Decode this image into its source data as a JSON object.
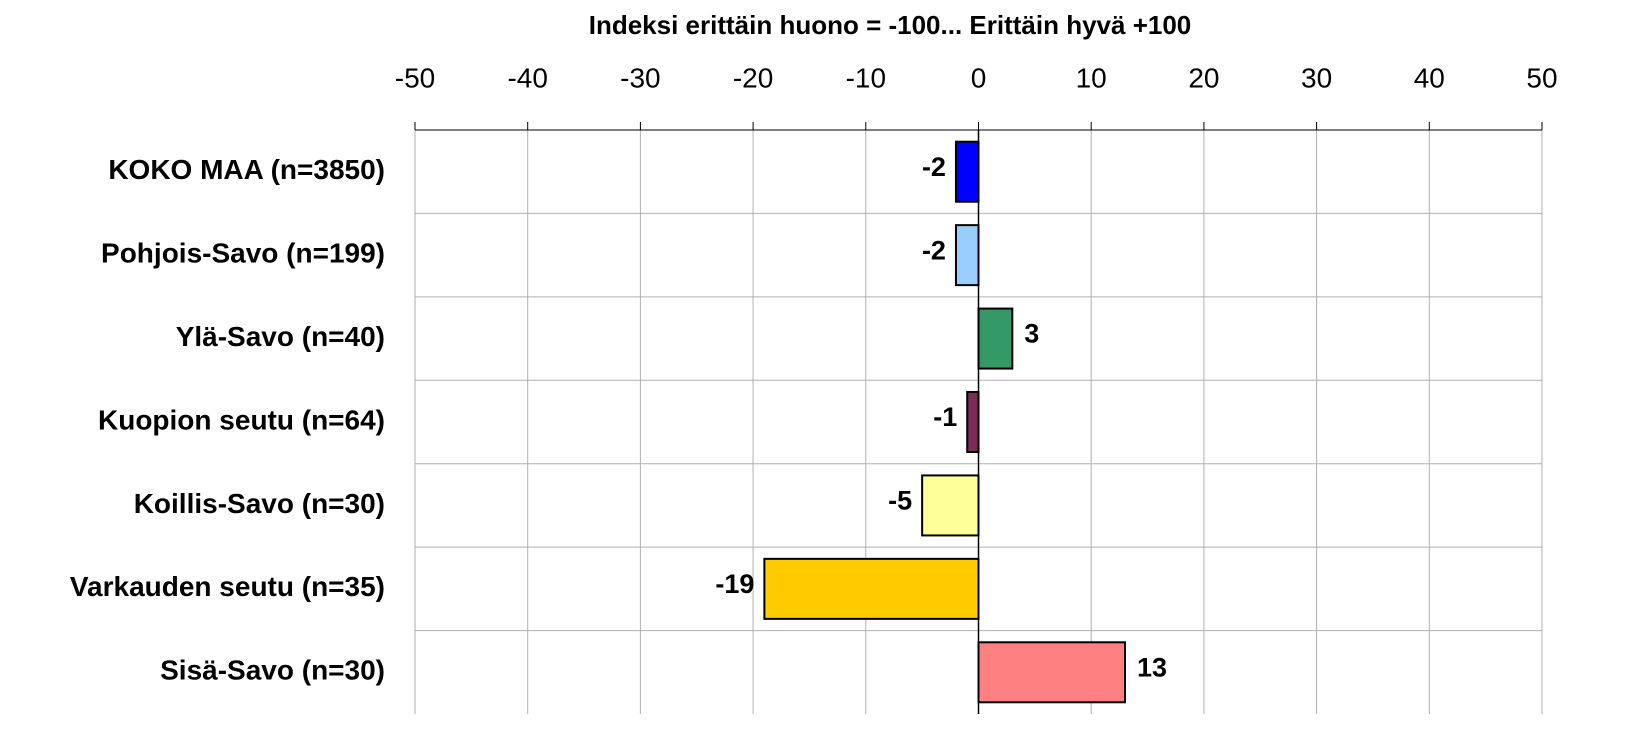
{
  "chart_data": {
    "type": "hbar",
    "title": "Indeksi erittäin huono = -100... Erittäin hyvä +100",
    "categories": [
      "KOKO MAA (n=3850)",
      "Pohjois-Savo (n=199)",
      "Ylä-Savo (n=40)",
      "Kuopion seutu (n=64)",
      "Koillis-Savo (n=30)",
      "Varkauden seutu (n=35)",
      "Sisä-Savo (n=30)"
    ],
    "values": [
      -2,
      -2,
      3,
      -1,
      -5,
      -19,
      13
    ],
    "colors": [
      "#0000ff",
      "#99ccff",
      "#339966",
      "#7b2d55",
      "#ffff99",
      "#ffcc00",
      "#ff8080"
    ],
    "xlim": [
      -50,
      50
    ],
    "xticks": [
      -50,
      -40,
      -30,
      -20,
      -10,
      0,
      10,
      20,
      30,
      40,
      50
    ],
    "grid": true
  }
}
